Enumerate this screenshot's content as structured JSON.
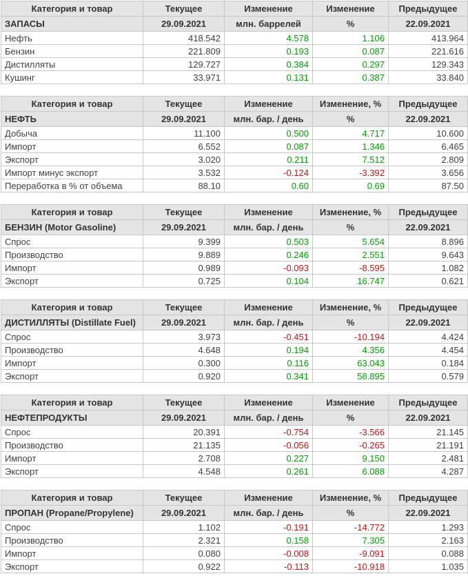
{
  "colors": {
    "positive": "#00a000",
    "negative": "#cc1111",
    "header_bg": "#e4e4e4",
    "border": "#c6c6c6",
    "text": "#3f3f3f"
  },
  "chart_data": [
    {
      "type": "table",
      "key": "inventories",
      "title": "ЗАПАСЫ",
      "columns": [
        "Категория и товар",
        "Текущее",
        "Изменение",
        "Изменение",
        "Предыдущее"
      ],
      "subcolumns": [
        "ЗАПАСЫ",
        "29.09.2021",
        "млн. баррелей",
        "%",
        "22.09.2021"
      ],
      "rows": [
        [
          "Нефть",
          "418.542",
          "4.578",
          "1.106",
          "413.964"
        ],
        [
          "Бензин",
          "221.809",
          "0.193",
          "0.087",
          "221.616"
        ],
        [
          "Дистилляты",
          "129.727",
          "0.384",
          "0.297",
          "129.343"
        ],
        [
          "Кушинг",
          "33.971",
          "0.131",
          "0.387",
          "33.840"
        ]
      ]
    },
    {
      "type": "table",
      "key": "crude-oil",
      "title": "НЕФТЬ",
      "columns": [
        "Категория и товар",
        "Текущее",
        "Изменение",
        "Изменение, %",
        "Предыдущее"
      ],
      "subcolumns": [
        "НЕФТЬ",
        "29.09.2021",
        "млн. бар. / день",
        "%",
        "22.09.2021"
      ],
      "rows": [
        [
          "Добыча",
          "11.100",
          "0.500",
          "4.717",
          "10.600"
        ],
        [
          "Импорт",
          "6.552",
          "0.087",
          "1.346",
          "6.465"
        ],
        [
          "Экспорт",
          "3.020",
          "0.211",
          "7.512",
          "2.809"
        ],
        [
          "Импорт минус экспорт",
          "3.532",
          "-0.124",
          "-3.392",
          "3.656"
        ],
        [
          "Переработка в % от объема",
          "88.10",
          "0.60",
          "0.69",
          "87.50"
        ]
      ]
    },
    {
      "type": "table",
      "key": "gasoline",
      "title": "БЕНЗИН (Motor Gasoline)",
      "columns": [
        "Категория и товар",
        "Текущее",
        "Изменение",
        "Изменение, %",
        "Предыдущее"
      ],
      "subcolumns": [
        "БЕНЗИН (Motor Gasoline)",
        "29.09.2021",
        "млн. бар. / день",
        "%",
        "22.09.2021"
      ],
      "rows": [
        [
          "Спрос",
          "9.399",
          "0.503",
          "5.654",
          "8.896"
        ],
        [
          "Производство",
          "9.889",
          "0.246",
          "2.551",
          "9.643"
        ],
        [
          "Импорт",
          "0.989",
          "-0.093",
          "-8.595",
          "1.082"
        ],
        [
          "Экспорт",
          "0.725",
          "0.104",
          "16.747",
          "0.621"
        ]
      ]
    },
    {
      "type": "table",
      "key": "distillates",
      "title": "ДИСТИЛЛЯТЫ (Distillate Fuel)",
      "columns": [
        "Категория и товар",
        "Текущее",
        "Изменение",
        "Изменение, %",
        "Предыдущее"
      ],
      "subcolumns": [
        "ДИСТИЛЛЯТЫ (Distillate Fuel)",
        "29.09.2021",
        "млн. бар. / день",
        "%",
        "22.09.2021"
      ],
      "rows": [
        [
          "Спрос",
          "3.973",
          "-0.451",
          "-10.194",
          "4.424"
        ],
        [
          "Производство",
          "4.648",
          "0.194",
          "4.356",
          "4.454"
        ],
        [
          "Импорт",
          "0.300",
          "0.116",
          "63.043",
          "0.184"
        ],
        [
          "Экспорт",
          "0.920",
          "0.341",
          "58.895",
          "0.579"
        ]
      ]
    },
    {
      "type": "table",
      "key": "petroleum-products",
      "title": "НЕФТЕПРОДУКТЫ",
      "columns": [
        "Категория и товар",
        "Текущее",
        "Изменение",
        "Изменение",
        "Предыдущее"
      ],
      "subcolumns": [
        "НЕФТЕПРОДУКТЫ",
        "29.09.2021",
        "млн. бар. / день",
        "%",
        "22.09.2021"
      ],
      "rows": [
        [
          "Спрос",
          "20.391",
          "-0.754",
          "-3.566",
          "21.145"
        ],
        [
          "Производство",
          "21.135",
          "-0.056",
          "-0.265",
          "21.191"
        ],
        [
          "Импорт",
          "2.708",
          "0.227",
          "9.150",
          "2.481"
        ],
        [
          "Экспорт",
          "4.548",
          "0.261",
          "6.088",
          "4.287"
        ]
      ]
    },
    {
      "type": "table",
      "key": "propane",
      "title": "ПРОПАН (Propane/Propylene)",
      "columns": [
        "Категория и товар",
        "Текущее",
        "Изменение",
        "Изменение, %",
        "Предыдущее"
      ],
      "subcolumns": [
        "ПРОПАН (Propane/Propylene)",
        "29.09.2021",
        "млн. бар. / день",
        "%",
        "22.09.2021"
      ],
      "rows": [
        [
          "Спрос",
          "1.102",
          "-0.191",
          "-14.772",
          "1.293"
        ],
        [
          "Производство",
          "2.321",
          "0.158",
          "7.305",
          "2.163"
        ],
        [
          "Импорт",
          "0.080",
          "-0.008",
          "-9.091",
          "0.088"
        ],
        [
          "Экспорт",
          "0.922",
          "-0.113",
          "-10.918",
          "1.035"
        ]
      ]
    }
  ]
}
